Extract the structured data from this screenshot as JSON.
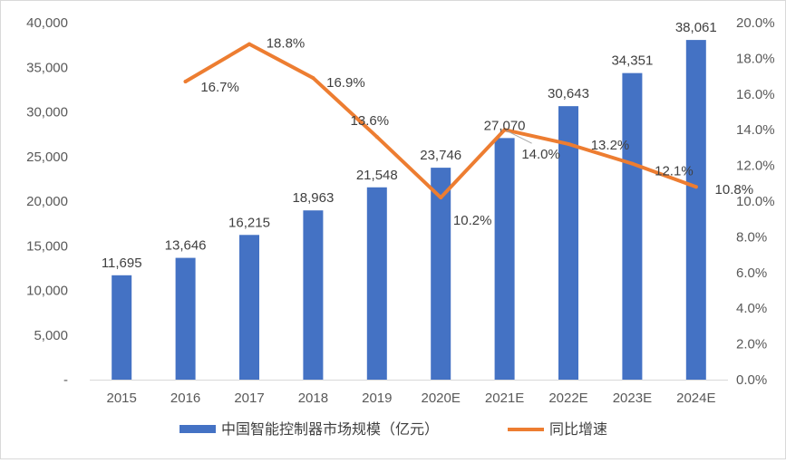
{
  "chart_data": {
    "type": "bar",
    "categories": [
      "2015",
      "2016",
      "2017",
      "2018",
      "2019",
      "2020E",
      "2021E",
      "2022E",
      "2023E",
      "2024E"
    ],
    "series": [
      {
        "name": "中国智能控制器市场规模（亿元）",
        "type": "bar",
        "axis": "left",
        "color": "#4472C4",
        "values": [
          11695,
          13646,
          16215,
          18963,
          21548,
          23746,
          27070,
          30643,
          34351,
          38061
        ],
        "labels": [
          "11,695",
          "13,646",
          "16,215",
          "18,963",
          "21,548",
          "23,746",
          "27,070",
          "30,643",
          "34,351",
          "38,061"
        ]
      },
      {
        "name": "同比增速",
        "type": "line",
        "axis": "right",
        "color": "#ED7D31",
        "values": [
          null,
          16.7,
          18.8,
          16.9,
          13.6,
          10.2,
          14.0,
          13.2,
          12.1,
          10.8
        ],
        "labels": [
          "",
          "16.7%",
          "18.8%",
          "16.9%",
          "13.6%",
          "10.2%",
          "14.0%",
          "13.2%",
          "12.1%",
          "10.8%"
        ]
      }
    ],
    "y_left": {
      "range": [
        0,
        40000
      ],
      "ticks": [
        0,
        5000,
        10000,
        15000,
        20000,
        25000,
        30000,
        35000,
        40000
      ],
      "tick_labels": [
        "-",
        "5,000",
        "10,000",
        "15,000",
        "20,000",
        "25,000",
        "30,000",
        "35,000",
        "40,000"
      ]
    },
    "y_right": {
      "range": [
        0,
        20
      ],
      "ticks": [
        0,
        2,
        4,
        6,
        8,
        10,
        12,
        14,
        16,
        18,
        20
      ],
      "tick_labels": [
        "0.0%",
        "2.0%",
        "4.0%",
        "6.0%",
        "8.0%",
        "10.0%",
        "12.0%",
        "14.0%",
        "16.0%",
        "18.0%",
        "20.0%"
      ]
    },
    "grid": false,
    "legend_position": "bottom",
    "title": "",
    "xlabel": "",
    "ylabel": ""
  }
}
